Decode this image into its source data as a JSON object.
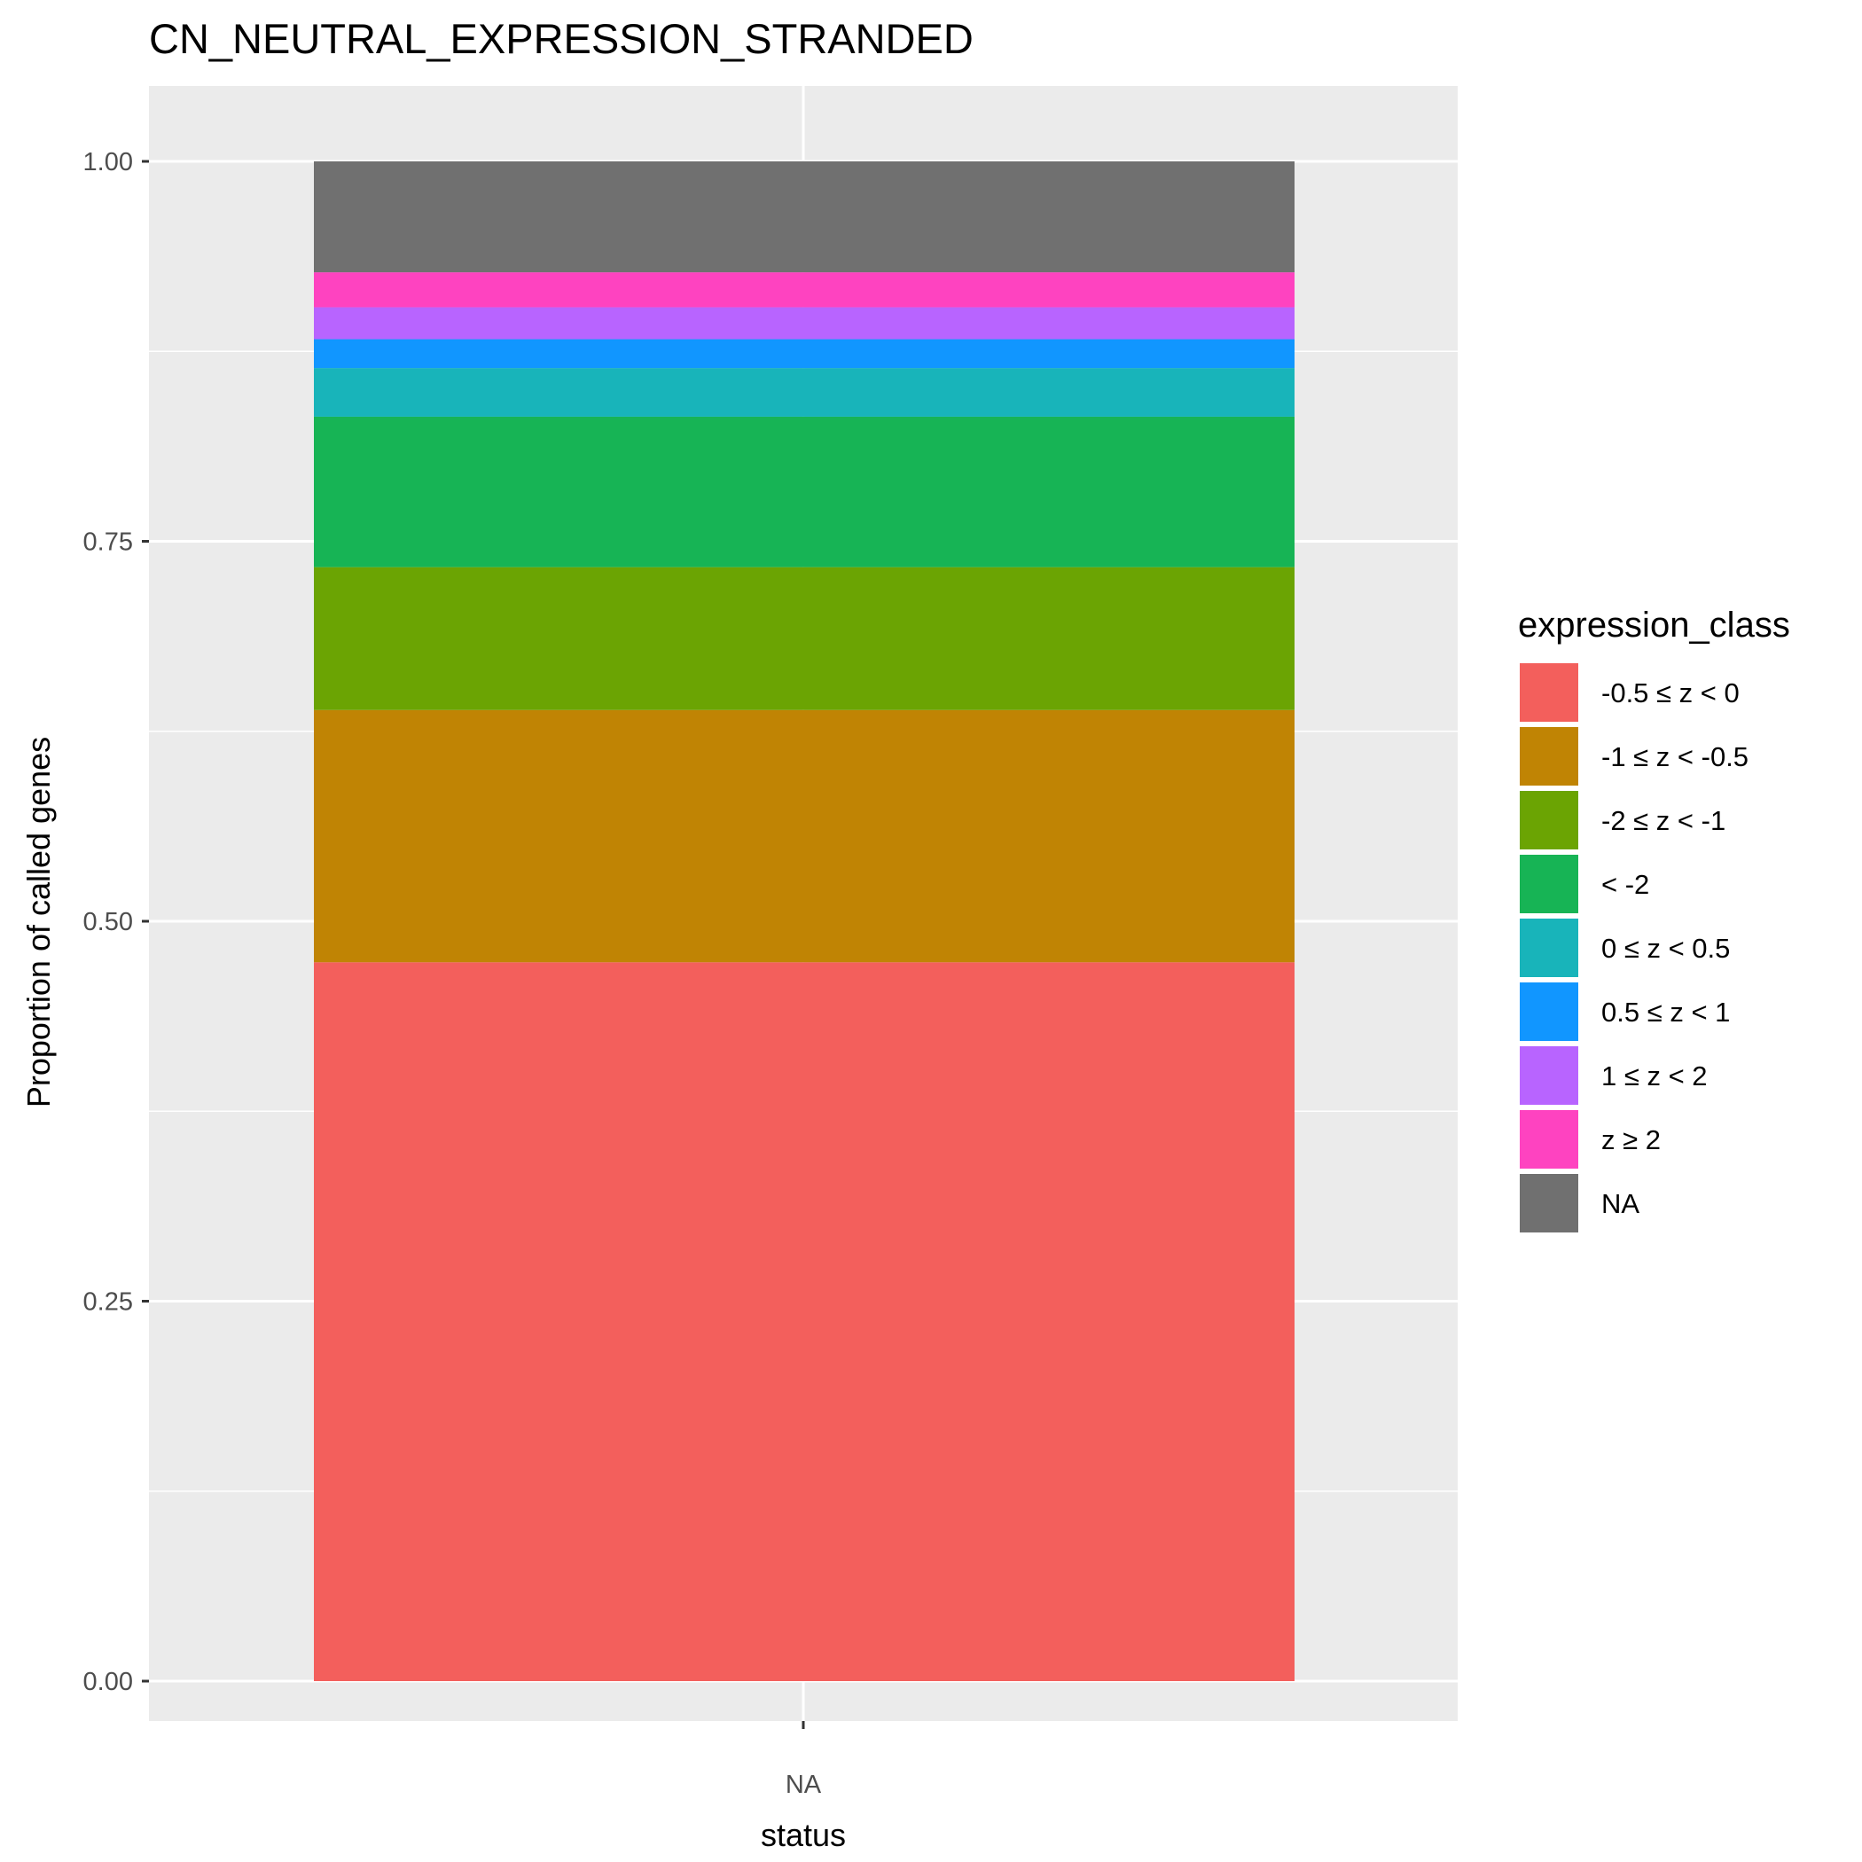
{
  "chart_data": {
    "type": "bar",
    "stacked": true,
    "title": "CN_NEUTRAL_EXPRESSION_STRANDED",
    "xlabel": "status",
    "ylabel": "Proportion of called genes",
    "categories": [
      "NA"
    ],
    "ylim": [
      0,
      1
    ],
    "yticks": [
      "0.00",
      "0.25",
      "0.50",
      "0.75",
      "1.00"
    ],
    "ytick_values": [
      0,
      0.25,
      0.5,
      0.75,
      1.0
    ],
    "grid": true,
    "legend": {
      "title": "expression_class",
      "position": "right"
    },
    "series": [
      {
        "name": "-0.5 ≤ z < 0",
        "color": "#F35F5C",
        "values": [
          0.473
        ]
      },
      {
        "name": "-1 ≤ z < -0.5",
        "color": "#C08404",
        "values": [
          0.166
        ]
      },
      {
        "name": "-2 ≤ z < -1",
        "color": "#6BA403",
        "values": [
          0.094
        ]
      },
      {
        "name": "< -2",
        "color": "#17B455",
        "values": [
          0.099
        ]
      },
      {
        "name": "0 ≤ z < 0.5",
        "color": "#18B4BA",
        "values": [
          0.032
        ]
      },
      {
        "name": "0.5 ≤ z < 1",
        "color": "#1196FF",
        "values": [
          0.019
        ]
      },
      {
        "name": "1 ≤ z < 2",
        "color": "#B864FF",
        "values": [
          0.021
        ]
      },
      {
        "name": "z ≥ 2",
        "color": "#FE43C0",
        "values": [
          0.023
        ]
      },
      {
        "name": "NA",
        "color": "#707070",
        "values": [
          0.073
        ]
      }
    ]
  }
}
